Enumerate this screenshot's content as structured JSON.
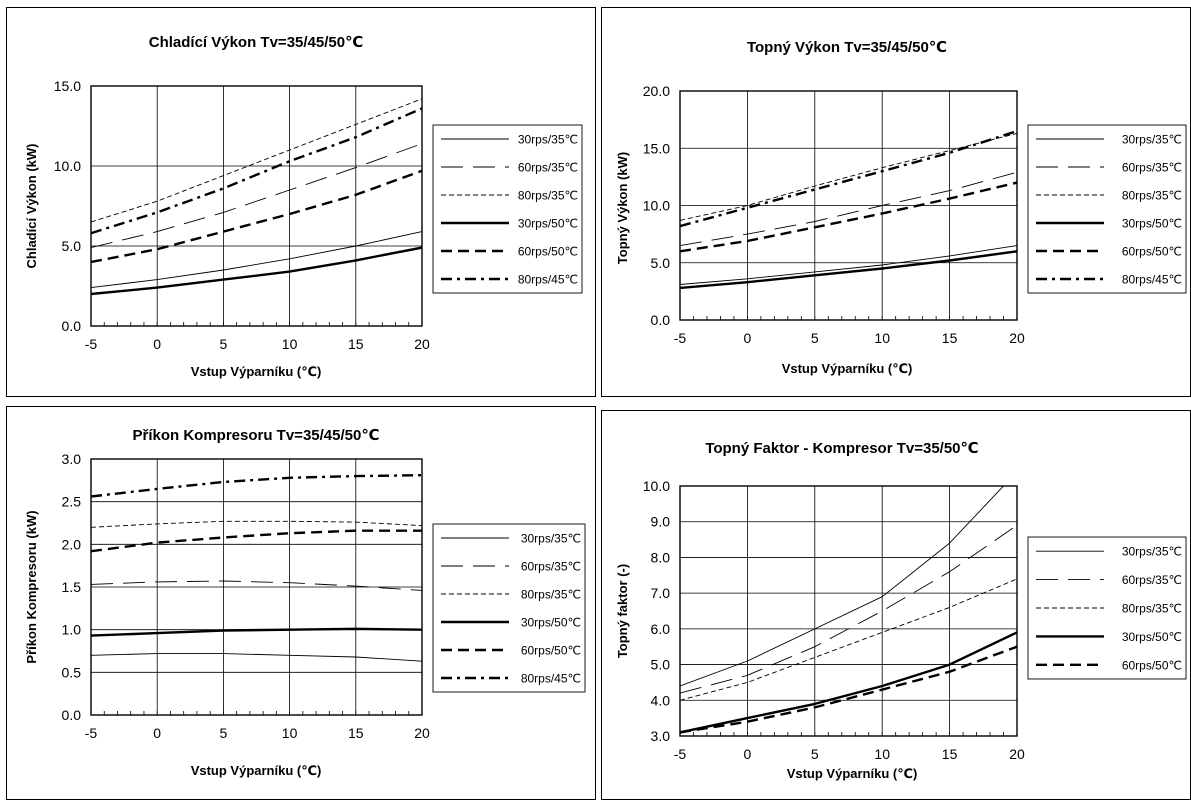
{
  "charts": {
    "c1": {
      "title": "Chladící Výkon Tv=35/45/50℃",
      "xlabel": "Vstup Výparníku (℃)",
      "ylabel": "Chladící Výkon (kW)",
      "yticks": [
        "0.0",
        "5.0",
        "10.0",
        "15.0"
      ],
      "xticks": [
        "-5",
        "0",
        "5",
        "10",
        "15",
        "20"
      ],
      "legend": [
        "30rps/35℃",
        "60rps/35℃",
        "80rps/35℃",
        "30rps/50℃",
        "60rps/50℃",
        "80rps/45℃"
      ]
    },
    "c2": {
      "title": "Topný Výkon Tv=35/45/50℃",
      "xlabel": "Vstup Výparníku (℃)",
      "ylabel": "Topný Výkon (kW)",
      "yticks": [
        "0.0",
        "5.0",
        "10.0",
        "15.0",
        "20.0"
      ],
      "xticks": [
        "-5",
        "0",
        "5",
        "10",
        "15",
        "20"
      ],
      "legend": [
        "30rps/35℃",
        "60rps/35℃",
        "80rps/35℃",
        "30rps/50℃",
        "60rps/50℃",
        "80rps/45℃"
      ]
    },
    "c3": {
      "title": "Příkon Kompresoru Tv=35/45/50℃",
      "xlabel": "Vstup Výparníku (℃)",
      "ylabel": "Příkon Kompresoru (kW)",
      "yticks": [
        "0.0",
        "0.5",
        "1.0",
        "1.5",
        "2.0",
        "2.5",
        "3.0"
      ],
      "xticks": [
        "-5",
        "0",
        "5",
        "10",
        "15",
        "20"
      ],
      "legend": [
        "30rps/35℃",
        "60rps/35℃",
        "80rps/35℃",
        "30rps/50℃",
        "60rps/50℃",
        "80rps/45℃"
      ]
    },
    "c4": {
      "title": "Topný Faktor - Kompresor Tv=35/50℃",
      "xlabel": "Vstup Výparníku (℃)",
      "ylabel": "Topný faktor (-)",
      "yticks": [
        "3.0",
        "4.0",
        "5.0",
        "6.0",
        "7.0",
        "8.0",
        "9.0",
        "10.0"
      ],
      "xticks": [
        "-5",
        "0",
        "5",
        "10",
        "15",
        "20"
      ],
      "legend": [
        "30rps/35℃",
        "60rps/35℃",
        "80rps/35℃",
        "30rps/50℃",
        "60rps/50℃"
      ]
    }
  },
  "chart_data": [
    {
      "type": "line",
      "title": "Chladící Výkon Tv=35/45/50℃",
      "xlabel": "Vstup Výparníku (℃)",
      "ylabel": "Chladící Výkon (kW)",
      "xlim": [
        -5,
        20
      ],
      "ylim": [
        0,
        15
      ],
      "grid": true,
      "legend_position": "right",
      "series": [
        {
          "name": "30rps/35℃",
          "style": "thin-solid",
          "points": [
            [
              -5,
              2.4
            ],
            [
              0,
              2.9
            ],
            [
              5,
              3.5
            ],
            [
              10,
              4.2
            ],
            [
              15,
              5.0
            ],
            [
              20,
              5.9
            ]
          ]
        },
        {
          "name": "60rps/35℃",
          "style": "long-dash",
          "points": [
            [
              -5,
              4.9
            ],
            [
              0,
              5.9
            ],
            [
              5,
              7.1
            ],
            [
              10,
              8.5
            ],
            [
              15,
              9.9
            ],
            [
              20,
              11.4
            ]
          ]
        },
        {
          "name": "80rps/35℃",
          "style": "thin-dash",
          "points": [
            [
              -5,
              6.5
            ],
            [
              0,
              7.8
            ],
            [
              5,
              9.4
            ],
            [
              10,
              11.0
            ],
            [
              15,
              12.6
            ],
            [
              20,
              14.2
            ]
          ]
        },
        {
          "name": "30rps/50℃",
          "style": "thick-solid",
          "points": [
            [
              -5,
              2.0
            ],
            [
              0,
              2.4
            ],
            [
              5,
              2.9
            ],
            [
              10,
              3.4
            ],
            [
              15,
              4.1
            ],
            [
              20,
              4.9
            ]
          ]
        },
        {
          "name": "60rps/50℃",
          "style": "thick-dash",
          "points": [
            [
              -5,
              4.0
            ],
            [
              0,
              4.8
            ],
            [
              5,
              5.9
            ],
            [
              10,
              7.0
            ],
            [
              15,
              8.2
            ],
            [
              20,
              9.7
            ]
          ]
        },
        {
          "name": "80rps/45℃",
          "style": "thick-dashdot",
          "points": [
            [
              -5,
              5.8
            ],
            [
              0,
              7.1
            ],
            [
              5,
              8.6
            ],
            [
              10,
              10.3
            ],
            [
              15,
              11.8
            ],
            [
              20,
              13.6
            ]
          ]
        }
      ]
    },
    {
      "type": "line",
      "title": "Topný Výkon Tv=35/45/50℃",
      "xlabel": "Vstup Výparníku (℃)",
      "ylabel": "Topný Výkon (kW)",
      "xlim": [
        -5,
        20
      ],
      "ylim": [
        0,
        20
      ],
      "grid": true,
      "legend_position": "right",
      "series": [
        {
          "name": "30rps/35℃",
          "style": "thin-solid",
          "points": [
            [
              -5,
              3.1
            ],
            [
              0,
              3.6
            ],
            [
              5,
              4.2
            ],
            [
              10,
              4.8
            ],
            [
              15,
              5.6
            ],
            [
              20,
              6.5
            ]
          ]
        },
        {
          "name": "60rps/35℃",
          "style": "long-dash",
          "points": [
            [
              -5,
              6.5
            ],
            [
              0,
              7.5
            ],
            [
              5,
              8.6
            ],
            [
              10,
              10.0
            ],
            [
              15,
              11.3
            ],
            [
              20,
              12.9
            ]
          ]
        },
        {
          "name": "80rps/35℃",
          "style": "thin-dash",
          "points": [
            [
              -5,
              8.7
            ],
            [
              0,
              10.0
            ],
            [
              5,
              11.7
            ],
            [
              10,
              13.3
            ],
            [
              15,
              14.8
            ],
            [
              20,
              16.3
            ]
          ]
        },
        {
          "name": "30rps/50℃",
          "style": "thick-solid",
          "points": [
            [
              -5,
              2.8
            ],
            [
              0,
              3.3
            ],
            [
              5,
              3.9
            ],
            [
              10,
              4.5
            ],
            [
              15,
              5.2
            ],
            [
              20,
              6.0
            ]
          ]
        },
        {
          "name": "60rps/50℃",
          "style": "thick-dash",
          "points": [
            [
              -5,
              6.0
            ],
            [
              0,
              6.9
            ],
            [
              5,
              8.1
            ],
            [
              10,
              9.3
            ],
            [
              15,
              10.6
            ],
            [
              20,
              12.0
            ]
          ]
        },
        {
          "name": "80rps/45℃",
          "style": "thick-dashdot",
          "points": [
            [
              -5,
              8.2
            ],
            [
              0,
              9.8
            ],
            [
              5,
              11.4
            ],
            [
              10,
              13.0
            ],
            [
              15,
              14.6
            ],
            [
              20,
              16.5
            ]
          ]
        }
      ]
    },
    {
      "type": "line",
      "title": "Příkon Kompresoru Tv=35/45/50℃",
      "xlabel": "Vstup Výparníku (℃)",
      "ylabel": "Příkon Kompresoru (kW)",
      "xlim": [
        -5,
        20
      ],
      "ylim": [
        0,
        3
      ],
      "grid": true,
      "legend_position": "right",
      "series": [
        {
          "name": "30rps/35℃",
          "style": "thin-solid",
          "points": [
            [
              -5,
              0.7
            ],
            [
              0,
              0.72
            ],
            [
              5,
              0.72
            ],
            [
              10,
              0.7
            ],
            [
              15,
              0.68
            ],
            [
              20,
              0.63
            ]
          ]
        },
        {
          "name": "60rps/35℃",
          "style": "long-dash",
          "points": [
            [
              -5,
              1.53
            ],
            [
              0,
              1.56
            ],
            [
              5,
              1.57
            ],
            [
              10,
              1.55
            ],
            [
              15,
              1.51
            ],
            [
              20,
              1.46
            ]
          ]
        },
        {
          "name": "80rps/35℃",
          "style": "thin-dash",
          "points": [
            [
              -5,
              2.2
            ],
            [
              0,
              2.24
            ],
            [
              5,
              2.27
            ],
            [
              10,
              2.27
            ],
            [
              15,
              2.26
            ],
            [
              20,
              2.22
            ]
          ]
        },
        {
          "name": "30rps/50℃",
          "style": "thick-solid",
          "points": [
            [
              -5,
              0.93
            ],
            [
              0,
              0.96
            ],
            [
              5,
              0.99
            ],
            [
              10,
              1.0
            ],
            [
              15,
              1.01
            ],
            [
              20,
              1.0
            ]
          ]
        },
        {
          "name": "60rps/50℃",
          "style": "thick-dash",
          "points": [
            [
              -5,
              1.92
            ],
            [
              0,
              2.02
            ],
            [
              5,
              2.08
            ],
            [
              10,
              2.13
            ],
            [
              15,
              2.16
            ],
            [
              20,
              2.16
            ]
          ]
        },
        {
          "name": "80rps/45℃",
          "style": "thick-dashdot",
          "points": [
            [
              -5,
              2.56
            ],
            [
              0,
              2.65
            ],
            [
              5,
              2.73
            ],
            [
              10,
              2.78
            ],
            [
              15,
              2.8
            ],
            [
              20,
              2.81
            ]
          ]
        }
      ]
    },
    {
      "type": "line",
      "title": "Topný Faktor - Kompresor Tv=35/50℃",
      "xlabel": "Vstup Výparníku (℃)",
      "ylabel": "Topný faktor (-)",
      "xlim": [
        -5,
        20
      ],
      "ylim": [
        3,
        10
      ],
      "grid": true,
      "legend_position": "right",
      "series": [
        {
          "name": "30rps/35℃",
          "style": "thin-solid",
          "points": [
            [
              -5,
              4.4
            ],
            [
              0,
              5.1
            ],
            [
              5,
              6.0
            ],
            [
              10,
              6.9
            ],
            [
              15,
              8.4
            ],
            [
              20,
              10.4
            ]
          ]
        },
        {
          "name": "60rps/35℃",
          "style": "long-dash",
          "points": [
            [
              -5,
              4.2
            ],
            [
              0,
              4.7
            ],
            [
              5,
              5.5
            ],
            [
              10,
              6.5
            ],
            [
              15,
              7.6
            ],
            [
              20,
              8.9
            ]
          ]
        },
        {
          "name": "80rps/35℃",
          "style": "thin-dash",
          "points": [
            [
              -5,
              4.0
            ],
            [
              0,
              4.5
            ],
            [
              5,
              5.2
            ],
            [
              10,
              5.9
            ],
            [
              15,
              6.6
            ],
            [
              20,
              7.4
            ]
          ]
        },
        {
          "name": "30rps/50℃",
          "style": "thick-solid",
          "points": [
            [
              -5,
              3.1
            ],
            [
              0,
              3.5
            ],
            [
              5,
              3.9
            ],
            [
              10,
              4.4
            ],
            [
              15,
              5.0
            ],
            [
              20,
              5.9
            ]
          ]
        },
        {
          "name": "60rps/50℃",
          "style": "thick-dash",
          "points": [
            [
              -5,
              3.1
            ],
            [
              0,
              3.4
            ],
            [
              5,
              3.8
            ],
            [
              10,
              4.3
            ],
            [
              15,
              4.8
            ],
            [
              20,
              5.5
            ]
          ]
        }
      ]
    }
  ]
}
